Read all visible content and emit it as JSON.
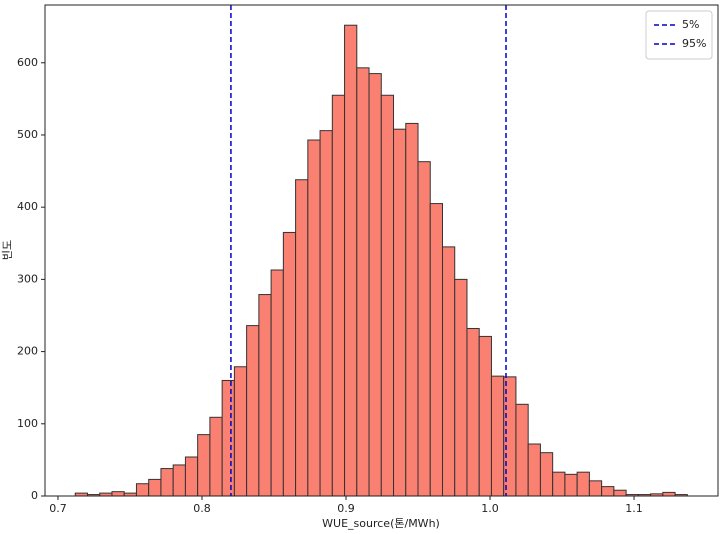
{
  "chart_data": {
    "type": "histogram",
    "x_label": "WUE_source(톤/MWh)",
    "y_label": "빈도",
    "bins": [
      0.712,
      0.7205,
      0.729,
      0.7375,
      0.746,
      0.7545,
      0.763,
      0.7715,
      0.78,
      0.7885,
      0.797,
      0.8055,
      0.814,
      0.8225,
      0.831,
      0.8395,
      0.848,
      0.8565,
      0.865,
      0.8735,
      0.882,
      0.8905,
      0.899,
      0.9075,
      0.916,
      0.9245,
      0.933,
      0.9415,
      0.95,
      0.9585,
      0.967,
      0.9755,
      0.984,
      0.9925,
      1.001,
      1.0095,
      1.018,
      1.0265,
      1.035,
      1.0435,
      1.052,
      1.0605,
      1.069,
      1.0775,
      1.086,
      1.0945,
      1.103,
      1.1115,
      1.12,
      1.1285,
      1.137
    ],
    "values": [
      4,
      2,
      4,
      6,
      4,
      17,
      23,
      38,
      43,
      54,
      85,
      109,
      160,
      179,
      236,
      279,
      313,
      365,
      438,
      493,
      506,
      555,
      652,
      593,
      585,
      555,
      508,
      516,
      463,
      405,
      345,
      300,
      232,
      221,
      166,
      165,
      127,
      72,
      60,
      33,
      30,
      33,
      21,
      13,
      8,
      2,
      2,
      3,
      5,
      2
    ],
    "color": "#fa8072",
    "edgecolor": "#333333",
    "lines": [
      {
        "name": "5%",
        "value": 0.8201,
        "color": "#0000cc"
      },
      {
        "name": "95%",
        "value": 1.0111,
        "color": "#0000cc"
      }
    ],
    "xlim": [
      0.691,
      1.1583
    ],
    "ylim": [
      0,
      680
    ],
    "xticks": [
      0.7,
      0.8,
      0.9,
      {
        "value": 1,
        "label": "1.0"
      },
      1.1
    ],
    "yticks": [
      0,
      100,
      200,
      300,
      400,
      500,
      600
    ],
    "legend": "upper right"
  }
}
